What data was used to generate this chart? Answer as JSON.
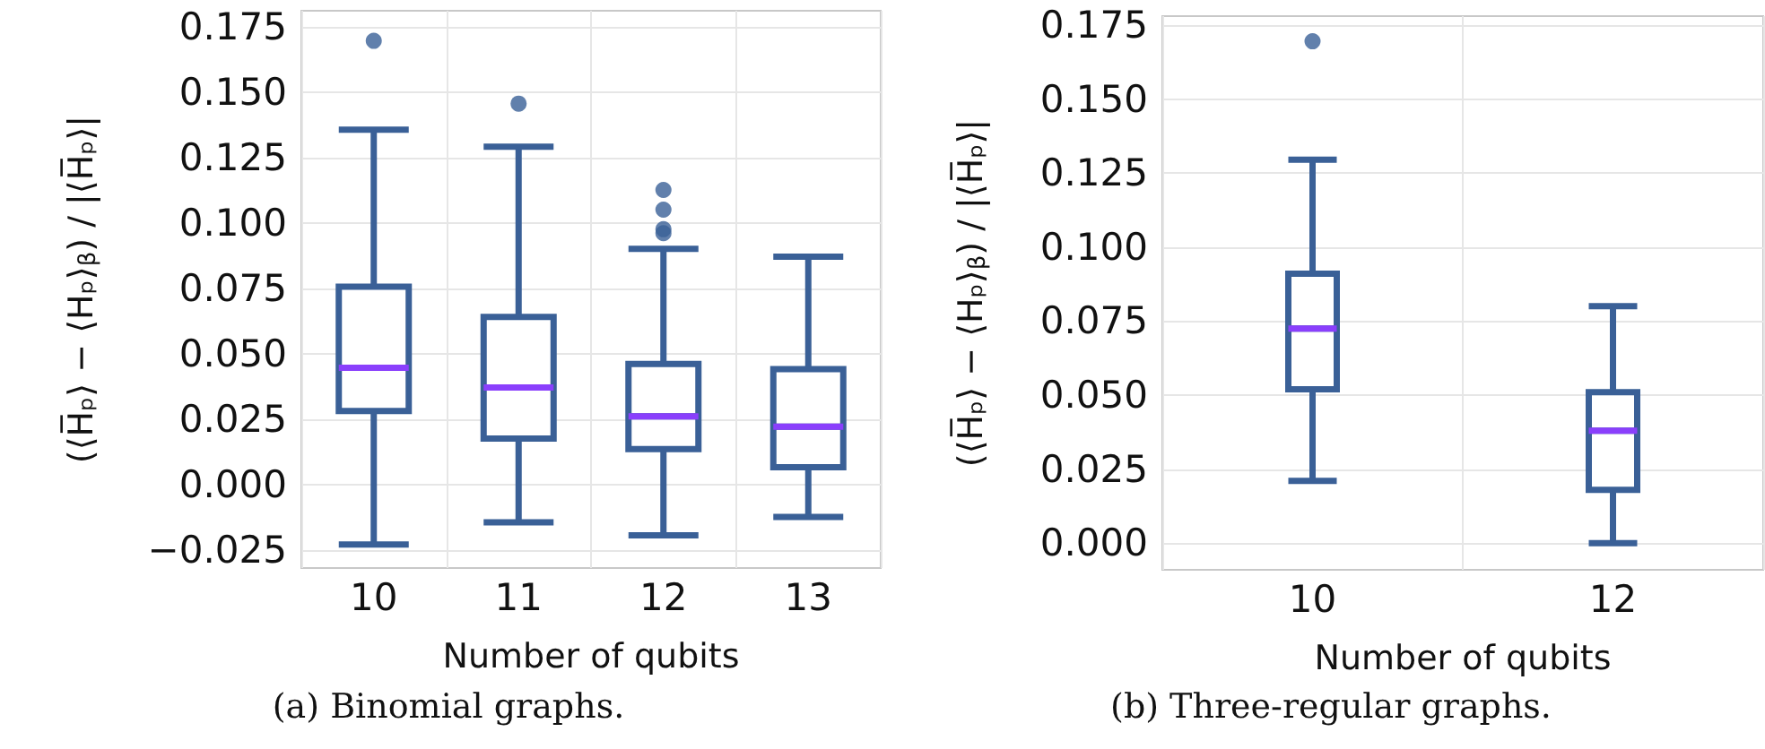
{
  "chart_data": [
    {
      "type": "box",
      "xlabel": "Number of qubits",
      "ylabel": "(⟨H̅ₚ⟩ − ⟨Hₚ⟩$_{β}$) / |⟨H̅ₚ⟩|",
      "annotations": [
        "(a) Binomial graphs."
      ],
      "categories": [
        "10",
        "11",
        "12",
        "13"
      ],
      "color": "#3a6097",
      "boxes": [
        {
          "low": -0.023,
          "q1": 0.028,
          "median": 0.0445,
          "q3": 0.0755,
          "high": 0.1355,
          "outliers": [
            0.1695
          ]
        },
        {
          "low": -0.0145,
          "q1": 0.0175,
          "median": 0.037,
          "q3": 0.064,
          "high": 0.129,
          "outliers": [
            0.1455
          ]
        },
        {
          "low": -0.0195,
          "q1": 0.0135,
          "median": 0.026,
          "q3": 0.046,
          "high": 0.09,
          "outliers": [
            0.1125,
            0.105,
            0.0975,
            0.096
          ]
        },
        {
          "low": -0.0125,
          "q1": 0.0065,
          "median": 0.022,
          "q3": 0.044,
          "high": 0.087
        }
      ],
      "ylim": [
        -0.032,
        0.181
      ],
      "yticks": [
        {
          "value": -0.025,
          "label": "−0.025"
        },
        {
          "value": 0,
          "label": "0.000"
        },
        {
          "value": 0.025,
          "label": "0.025"
        },
        {
          "value": 0.05,
          "label": "0.050"
        },
        {
          "value": 0.075,
          "label": "0.075"
        },
        {
          "value": 0.1,
          "label": "0.100"
        },
        {
          "value": 0.125,
          "label": "0.125"
        },
        {
          "value": 0.15,
          "label": "0.150"
        },
        {
          "value": 0.175,
          "label": "0.175"
        }
      ],
      "grid": true
    },
    {
      "type": "box",
      "xlabel": "Number of qubits",
      "ylabel": "(⟨H̅ₚ⟩ − ⟨Hₚ⟩$_{β}$) / |⟨H̅ₚ⟩|",
      "annotations": [
        "(b) Three-regular graphs."
      ],
      "categories": [
        "10",
        "12"
      ],
      "color": "#3a6097",
      "boxes": [
        {
          "low": 0.021,
          "q1": 0.052,
          "median": 0.0725,
          "q3": 0.091,
          "high": 0.1295,
          "outliers": [
            0.1695
          ]
        },
        {
          "low": 0,
          "q1": 0.018,
          "median": 0.038,
          "q3": 0.051,
          "high": 0.08
        }
      ],
      "ylim": [
        -0.009,
        0.178
      ],
      "yticks": [
        {
          "value": 0,
          "label": "0.000"
        },
        {
          "value": 0.025,
          "label": "0.025"
        },
        {
          "value": 0.05,
          "label": "0.050"
        },
        {
          "value": 0.075,
          "label": "0.075"
        },
        {
          "value": 0.1,
          "label": "0.100"
        },
        {
          "value": 0.125,
          "label": "0.125"
        },
        {
          "value": 0.15,
          "label": "0.150"
        },
        {
          "value": 0.175,
          "label": "0.175"
        }
      ],
      "grid": true
    }
  ]
}
